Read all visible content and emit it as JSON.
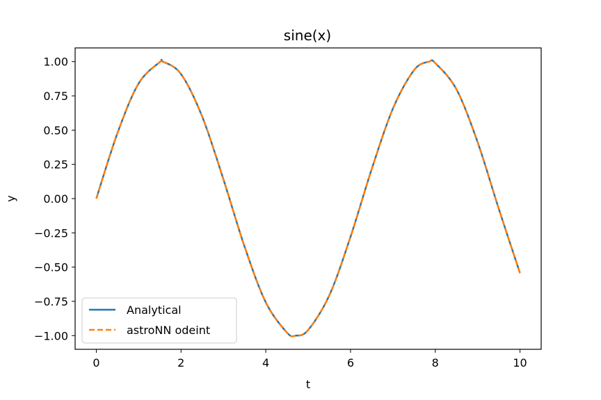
{
  "chart_data": {
    "type": "line",
    "title": "sine(x)",
    "xlabel": "t",
    "ylabel": "y",
    "xlim": [
      -0.5,
      10.5
    ],
    "ylim": [
      -1.1,
      1.1
    ],
    "x_ticks": [
      0,
      2,
      4,
      6,
      8,
      10
    ],
    "x_tick_labels": [
      "0",
      "2",
      "4",
      "6",
      "8",
      "10"
    ],
    "y_ticks": [
      1.0,
      0.75,
      0.5,
      0.25,
      0.0,
      -0.25,
      -0.5,
      -0.75,
      -1.0
    ],
    "y_tick_labels": [
      "1.00",
      "0.75",
      "0.50",
      "0.25",
      "0.00",
      "−0.25",
      "−0.50",
      "−0.75",
      "−1.00"
    ],
    "grid": false,
    "legend_position": "lower-left",
    "series": [
      {
        "name": "Analytical",
        "color": "#1f77b4",
        "style": "solid",
        "x": [
          0,
          0.5,
          1,
          1.5,
          1.5708,
          2,
          2.5,
          3,
          3.5,
          4,
          4.5,
          4.7124,
          5,
          5.5,
          6,
          6.5,
          7,
          7.5,
          7.854,
          8,
          8.5,
          9,
          9.5,
          10
        ],
        "y": [
          0,
          0.479,
          0.841,
          0.997,
          1.0,
          0.909,
          0.598,
          0.141,
          -0.351,
          -0.757,
          -0.978,
          -1.0,
          -0.959,
          -0.706,
          -0.279,
          0.215,
          0.657,
          0.938,
          1.0,
          0.989,
          0.798,
          0.412,
          -0.075,
          -0.544
        ]
      },
      {
        "name": "astroNN odeint",
        "color": "#ff7f0e",
        "style": "dashed",
        "x": [
          0,
          0.5,
          1,
          1.5,
          1.5708,
          2,
          2.5,
          3,
          3.5,
          4,
          4.5,
          4.7124,
          5,
          5.5,
          6,
          6.5,
          7,
          7.5,
          7.854,
          8,
          8.5,
          9,
          9.5,
          10
        ],
        "y": [
          0,
          0.479,
          0.841,
          0.997,
          1.0,
          0.909,
          0.598,
          0.141,
          -0.351,
          -0.757,
          -0.978,
          -1.0,
          -0.959,
          -0.706,
          -0.279,
          0.215,
          0.657,
          0.938,
          1.0,
          0.989,
          0.798,
          0.412,
          -0.075,
          -0.544
        ]
      }
    ]
  }
}
